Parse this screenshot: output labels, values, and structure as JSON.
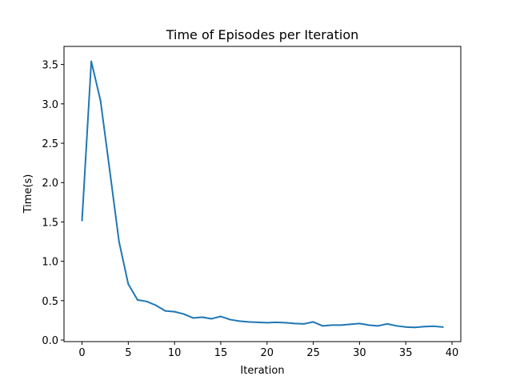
{
  "chart_data": {
    "type": "line",
    "title": "Time of Episodes per Iteration",
    "xlabel": "Iteration",
    "ylabel": "Time(s)",
    "xlim": [
      -1.95,
      40.95
    ],
    "ylim": [
      -0.02,
      3.73
    ],
    "xticks": [
      0,
      5,
      10,
      15,
      20,
      25,
      30,
      35,
      40
    ],
    "yticks": [
      0.0,
      0.5,
      1.0,
      1.5,
      2.0,
      2.5,
      3.0,
      3.5
    ],
    "xtick_labels": [
      "0",
      "5",
      "10",
      "15",
      "20",
      "25",
      "30",
      "35",
      "40"
    ],
    "ytick_labels": [
      "0.0",
      "0.5",
      "1.0",
      "1.5",
      "2.0",
      "2.5",
      "3.0",
      "3.5"
    ],
    "grid": false,
    "series": [
      {
        "color": "#1f77b4",
        "x": [
          0,
          1,
          2,
          3,
          4,
          5,
          6,
          7,
          8,
          9,
          10,
          11,
          12,
          13,
          14,
          15,
          16,
          17,
          18,
          19,
          20,
          21,
          22,
          23,
          24,
          25,
          26,
          27,
          28,
          29,
          30,
          31,
          32,
          33,
          34,
          35,
          36,
          37,
          38,
          39
        ],
        "values": [
          1.52,
          3.54,
          3.04,
          2.15,
          1.25,
          0.71,
          0.51,
          0.49,
          0.44,
          0.37,
          0.36,
          0.33,
          0.28,
          0.29,
          0.27,
          0.3,
          0.26,
          0.24,
          0.23,
          0.225,
          0.22,
          0.225,
          0.22,
          0.21,
          0.205,
          0.23,
          0.18,
          0.19,
          0.19,
          0.2,
          0.21,
          0.19,
          0.18,
          0.205,
          0.18,
          0.165,
          0.16,
          0.17,
          0.175,
          0.165
        ]
      }
    ]
  }
}
